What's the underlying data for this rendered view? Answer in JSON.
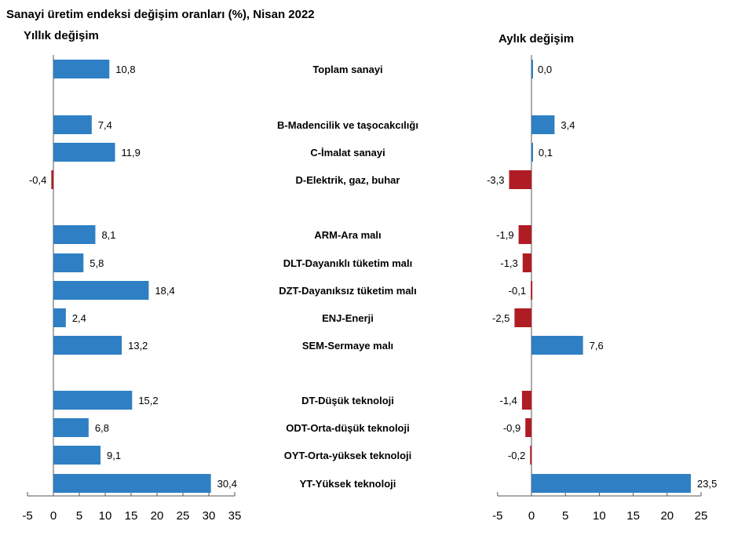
{
  "title": "Sanayi üretim endeksi değişim oranları (%), Nisan 2022",
  "colors": {
    "positive": "#2e7fc4",
    "negative": "#b01c24",
    "axis": "#555555"
  },
  "chart_data": [
    {
      "type": "bar",
      "orientation": "horizontal",
      "title": "Yıllık değişim",
      "categories": [
        "Toplam sanayi",
        "B-Madencilik ve taşocakcılığı",
        "C-İmalat sanayi",
        "D-Elektrik, gaz, buhar",
        "ARM-Ara malı",
        "DLT-Dayanıklı tüketim malı",
        "DZT-Dayanıksız tüketim malı",
        "ENJ-Enerji",
        "SEM-Sermaye malı",
        "DT-Düşük teknoloji",
        "ODT-Orta-düşük teknoloji",
        "OYT-Orta-yüksek teknoloji",
        "YT-Yüksek teknoloji"
      ],
      "values": [
        10.8,
        7.4,
        11.9,
        -0.4,
        8.1,
        5.8,
        18.4,
        2.4,
        13.2,
        15.2,
        6.8,
        9.1,
        30.4
      ],
      "value_labels": [
        "10,8",
        "7,4",
        "11,9",
        "-0,4",
        "8,1",
        "5,8",
        "18,4",
        "2,4",
        "13,2",
        "15,2",
        "6,8",
        "9,1",
        "30,4"
      ],
      "xlim": [
        -5,
        35
      ],
      "ticks": [
        "-5",
        "0",
        "5",
        "10",
        "15",
        "20",
        "25",
        "30",
        "35"
      ],
      "grid": false
    },
    {
      "type": "bar",
      "orientation": "horizontal",
      "title": "Aylık değişim",
      "categories": [
        "Toplam sanayi",
        "B-Madencilik ve taşocakcılığı",
        "C-İmalat sanayi",
        "D-Elektrik, gaz, buhar",
        "ARM-Ara malı",
        "DLT-Dayanıklı tüketim malı",
        "DZT-Dayanıksız tüketim malı",
        "ENJ-Enerji",
        "SEM-Sermaye malı",
        "DT-Düşük teknoloji",
        "ODT-Orta-düşük teknoloji",
        "OYT-Orta-yüksek teknoloji",
        "YT-Yüksek teknoloji"
      ],
      "values": [
        0.0,
        3.4,
        0.1,
        -3.3,
        -1.9,
        -1.3,
        -0.1,
        -2.5,
        7.6,
        -1.4,
        -0.9,
        -0.2,
        23.5
      ],
      "value_labels": [
        "0,0",
        "3,4",
        "0,1",
        "-3,3",
        "-1,9",
        "-1,3",
        "-0,1",
        "-2,5",
        "7,6",
        "-1,4",
        "-0,9",
        "-0,2",
        "23,5"
      ],
      "xlim": [
        -5,
        25
      ],
      "ticks": [
        "-5",
        "0",
        "5",
        "10",
        "15",
        "20",
        "25"
      ],
      "grid": false
    }
  ]
}
